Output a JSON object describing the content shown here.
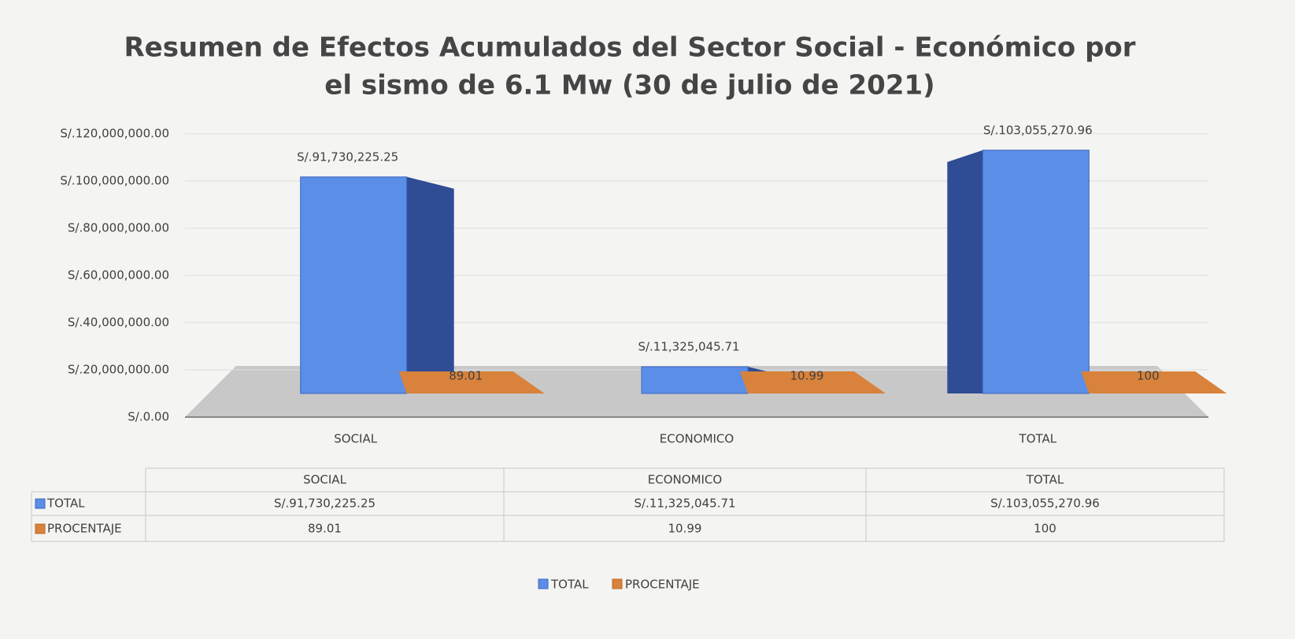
{
  "chart_data": {
    "type": "bar3d",
    "title": [
      "Resumen de Efectos Acumulados del Sector Social - Económico por",
      "el sismo de 6.1 Mw (30 de julio de 2021)"
    ],
    "categories": [
      "SOCIAL",
      "ECONOMICO",
      "TOTAL"
    ],
    "series": [
      {
        "name": "TOTAL",
        "color": "#5b8ee6",
        "values": [
          91730225.25,
          11325045.71,
          103055270.96
        ],
        "value_labels": [
          "S/.91,730,225.25",
          "S/.11,325,045.71",
          "S/.103,055,270.96"
        ]
      },
      {
        "name": "PROCENTAJE",
        "color": "#d9823b",
        "values": [
          89.01,
          10.99,
          100
        ]
      }
    ],
    "ylim": [
      0,
      120000000
    ],
    "yticks": [
      {
        "value": 0,
        "label": "S/.0.00"
      },
      {
        "value": 20000000,
        "label": "S/.20,000,000.00"
      },
      {
        "value": 40000000,
        "label": "S/.40,000,000.00"
      },
      {
        "value": 60000000,
        "label": "S/.60,000,000.00"
      },
      {
        "value": 80000000,
        "label": "S/.80,000,000.00"
      },
      {
        "value": 100000000,
        "label": "S/.100,000,000.00"
      },
      {
        "value": 120000000,
        "label": "S/.120,000,000.00"
      }
    ],
    "grid": true,
    "legend": "bottom",
    "data_table": true
  }
}
